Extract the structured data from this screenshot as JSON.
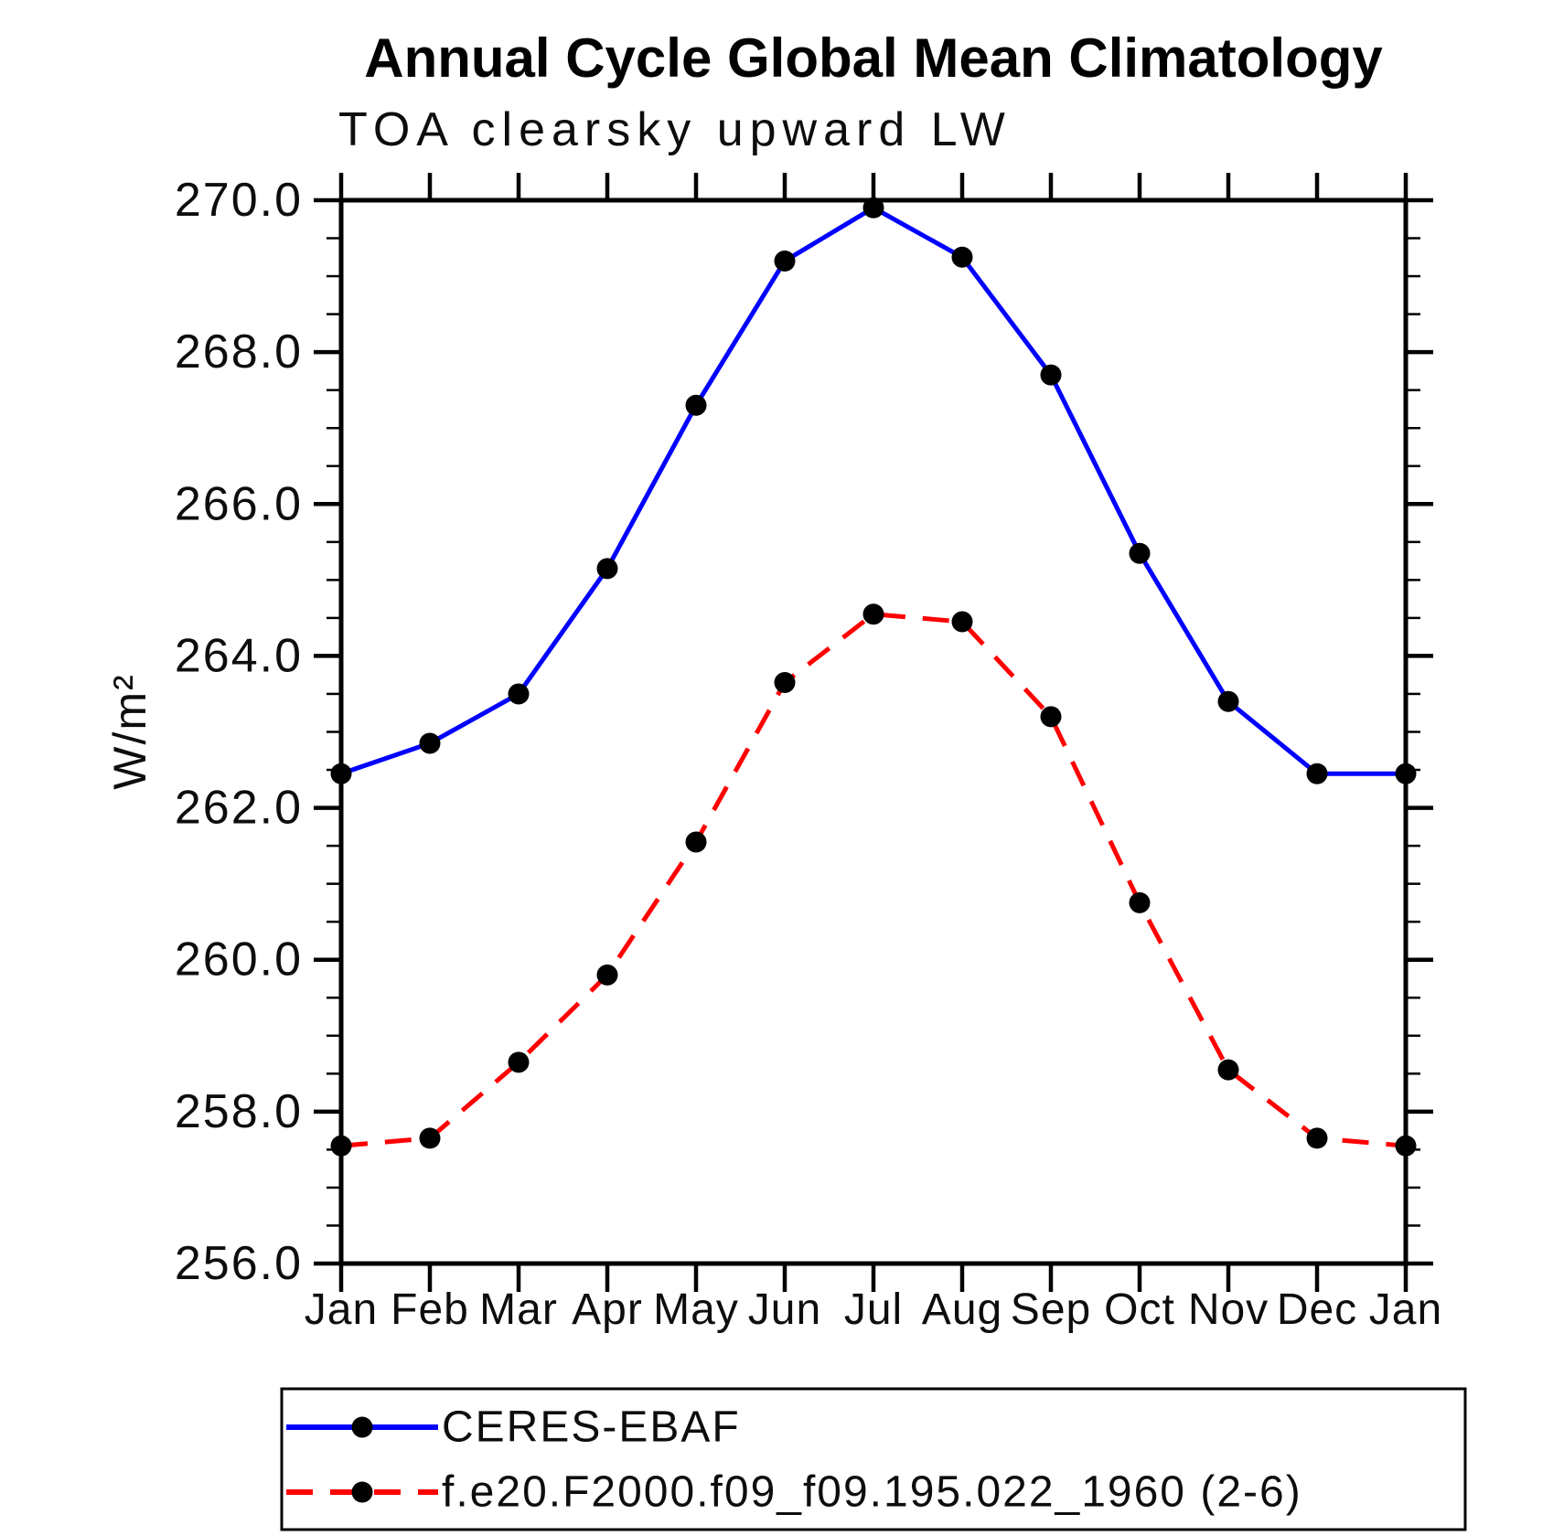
{
  "header": {
    "title": "Annual Cycle Global Mean Climatology",
    "subtitle": "TOA clearsky upward LW"
  },
  "chart_data": {
    "type": "line",
    "title": "Annual Cycle Global Mean Climatology",
    "subtitle": "TOA clearsky upward LW",
    "ylabel": "W/m²",
    "xlabel": "",
    "categories": [
      "Jan",
      "Feb",
      "Mar",
      "Apr",
      "May",
      "Jun",
      "Jul",
      "Aug",
      "Sep",
      "Oct",
      "Nov",
      "Dec",
      "Jan"
    ],
    "ylim": [
      256.0,
      270.0
    ],
    "ytick_major_step": 2.0,
    "ytick_minor_step": 0.5,
    "ytick_labels": [
      "256.0",
      "258.0",
      "260.0",
      "262.0",
      "264.0",
      "266.0",
      "268.0",
      "270.0"
    ],
    "grid": "off",
    "marker": {
      "shape": "circle",
      "color": "#000000"
    },
    "series": [
      {
        "name": "CERES-EBAF",
        "color": "#0000ff",
        "line_style": "solid",
        "values": [
          262.45,
          262.85,
          263.5,
          265.15,
          267.3,
          269.2,
          269.9,
          269.25,
          267.7,
          265.35,
          263.4,
          262.45,
          262.45
        ]
      },
      {
        "name": "f.e20.F2000.f09_f09.195.022_1960 (2-6)",
        "color": "#ff0000",
        "line_style": "dashed",
        "values": [
          257.55,
          257.65,
          258.65,
          259.8,
          261.55,
          263.65,
          264.55,
          264.45,
          263.2,
          260.75,
          258.55,
          257.65,
          257.55
        ]
      }
    ],
    "legend_position": "bottom"
  },
  "legend": {
    "entries": [
      {
        "label": "CERES-EBAF",
        "line_color": "#0000ff",
        "line_style": "solid",
        "marker": "black-dot"
      },
      {
        "label": "f.e20.F2000.f09_f09.195.022_1960 (2-6)",
        "line_color": "#ff0000",
        "line_style": "dashed",
        "marker": "black-dot"
      }
    ]
  },
  "colors": {
    "axis": "#000000",
    "background": "#ffffff",
    "series_blue": "#0000ff",
    "series_red": "#ff0000",
    "marker_black": "#000000"
  }
}
